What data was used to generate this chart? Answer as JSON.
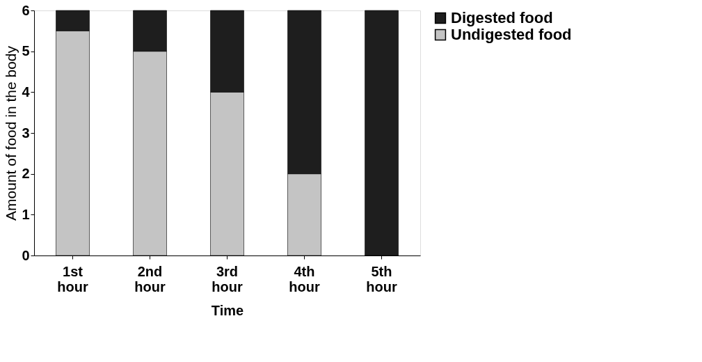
{
  "chart_data": {
    "type": "bar",
    "stacked": true,
    "xlabel": "Time",
    "ylabel": "Amount of food in the body",
    "categories": [
      "1st hour",
      "2nd hour",
      "3rd hour",
      "4th hour",
      "5th hour"
    ],
    "series": [
      {
        "name": "Undigested food",
        "color": "#c4c4c4",
        "values": [
          5.5,
          5,
          4,
          2,
          0
        ]
      },
      {
        "name": "Digested food",
        "color": "#1e1e1e",
        "values": [
          0.5,
          1,
          2,
          4,
          6
        ]
      }
    ],
    "ylim": [
      0,
      6
    ],
    "yticks": [
      0,
      1,
      2,
      3,
      4,
      5,
      6
    ],
    "grid": false,
    "legend": "right"
  }
}
